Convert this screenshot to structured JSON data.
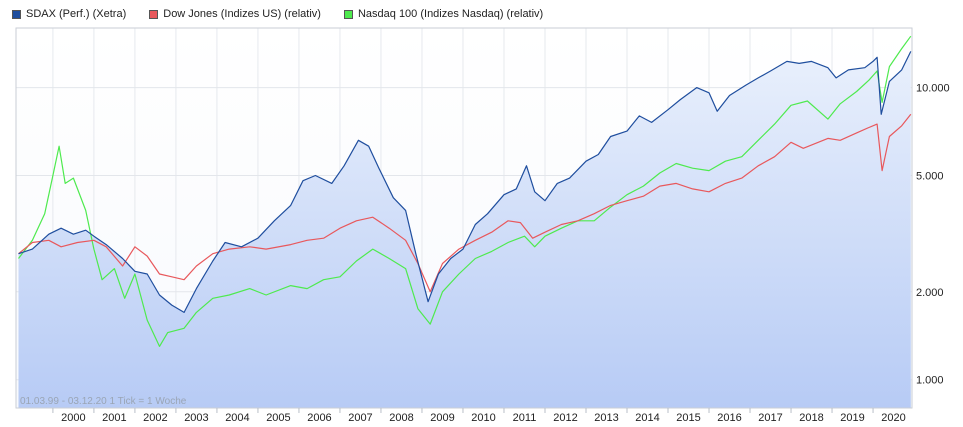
{
  "chart_data": {
    "type": "line",
    "y_scale": "log",
    "ylim": [
      800,
      16000
    ],
    "xlim": [
      1999.1,
      2020.95
    ],
    "grid": "vertical and horizontal",
    "legend_position": "top-left",
    "note": "01.03.99 - 03.12.20   1 Tick = 1 Woche",
    "x_ticks": [
      "2000",
      "2001",
      "2002",
      "2003",
      "2004",
      "2005",
      "2006",
      "2007",
      "2008",
      "2009",
      "2010",
      "2011",
      "2012",
      "2013",
      "2014",
      "2015",
      "2016",
      "2017",
      "2018",
      "2019",
      "2020"
    ],
    "y_ticks": [
      {
        "value": 1000,
        "label": "1.000"
      },
      {
        "value": 2000,
        "label": "2.000"
      },
      {
        "value": 5000,
        "label": "5.000"
      },
      {
        "value": 10000,
        "label": "10.000"
      }
    ],
    "series": [
      {
        "name": "SDAX (Perf.) (Xetra)",
        "color": "#1f4e9e",
        "x": [
          1999.16,
          1999.5,
          1999.9,
          2000.2,
          2000.5,
          2000.8,
          2001.0,
          2001.3,
          2001.7,
          2002.0,
          2002.3,
          2002.6,
          2002.9,
          2003.2,
          2003.5,
          2003.9,
          2004.2,
          2004.6,
          2005.0,
          2005.4,
          2005.8,
          2006.1,
          2006.4,
          2006.8,
          2007.1,
          2007.45,
          2007.7,
          2007.95,
          2008.3,
          2008.6,
          2008.85,
          2009.15,
          2009.4,
          2009.7,
          2010.0,
          2010.3,
          2010.6,
          2011.0,
          2011.3,
          2011.55,
          2011.75,
          2012.0,
          2012.3,
          2012.6,
          2013.0,
          2013.3,
          2013.6,
          2014.0,
          2014.3,
          2014.6,
          2015.0,
          2015.3,
          2015.7,
          2016.0,
          2016.2,
          2016.5,
          2016.9,
          2017.2,
          2017.5,
          2017.9,
          2018.2,
          2018.5,
          2018.9,
          2019.1,
          2019.4,
          2019.8,
          2020.0,
          2020.1,
          2020.2,
          2020.4,
          2020.7,
          2020.92
        ],
        "values": [
          2700,
          2800,
          3150,
          3300,
          3150,
          3250,
          3100,
          2900,
          2600,
          2350,
          2300,
          1950,
          1800,
          1700,
          2050,
          2550,
          2950,
          2850,
          3050,
          3500,
          3950,
          4800,
          5000,
          4700,
          5400,
          6600,
          6300,
          5300,
          4200,
          3800,
          2700,
          1850,
          2300,
          2600,
          2800,
          3400,
          3700,
          4300,
          4500,
          5400,
          4400,
          4100,
          4700,
          4900,
          5600,
          5900,
          6800,
          7100,
          8000,
          7600,
          8400,
          9100,
          10000,
          9600,
          8300,
          9400,
          10200,
          10800,
          11400,
          12300,
          12100,
          12300,
          11700,
          10800,
          11500,
          11700,
          12300,
          12700,
          8100,
          10500,
          11500,
          13300
        ]
      },
      {
        "name": "Dow Jones (Indizes US) (relativ)",
        "color": "#e8585c",
        "x": [
          1999.16,
          1999.5,
          1999.9,
          2000.2,
          2000.6,
          2001.0,
          2001.3,
          2001.7,
          2002.0,
          2002.3,
          2002.6,
          2002.9,
          2003.2,
          2003.5,
          2003.9,
          2004.3,
          2004.8,
          2005.2,
          2005.8,
          2006.2,
          2006.6,
          2007.0,
          2007.4,
          2007.8,
          2008.2,
          2008.6,
          2008.9,
          2009.2,
          2009.5,
          2009.9,
          2010.3,
          2010.7,
          2011.1,
          2011.4,
          2011.7,
          2012.0,
          2012.4,
          2012.8,
          2013.2,
          2013.6,
          2014.0,
          2014.4,
          2014.8,
          2015.2,
          2015.6,
          2016.0,
          2016.4,
          2016.8,
          2017.2,
          2017.6,
          2018.0,
          2018.3,
          2018.9,
          2019.2,
          2019.6,
          2019.9,
          2020.1,
          2020.22,
          2020.4,
          2020.7,
          2020.92
        ],
        "values": [
          2700,
          2950,
          3000,
          2850,
          2950,
          3000,
          2850,
          2450,
          2850,
          2650,
          2300,
          2250,
          2200,
          2450,
          2700,
          2800,
          2850,
          2800,
          2900,
          3000,
          3050,
          3300,
          3500,
          3600,
          3300,
          3000,
          2500,
          2000,
          2500,
          2800,
          3000,
          3200,
          3500,
          3450,
          3050,
          3200,
          3400,
          3500,
          3700,
          3950,
          4100,
          4250,
          4600,
          4700,
          4500,
          4400,
          4700,
          4900,
          5400,
          5800,
          6500,
          6200,
          6700,
          6600,
          7000,
          7300,
          7500,
          5200,
          6800,
          7400,
          8100
        ]
      },
      {
        "name": "Nasdaq 100 (Indizes Nasdaq) (relativ)",
        "color": "#4eea4e",
        "x": [
          1999.16,
          1999.5,
          1999.8,
          2000.0,
          2000.15,
          2000.3,
          2000.5,
          2000.8,
          2001.0,
          2001.2,
          2001.5,
          2001.75,
          2002.0,
          2002.3,
          2002.6,
          2002.8,
          2003.2,
          2003.5,
          2003.9,
          2004.3,
          2004.8,
          2005.2,
          2005.8,
          2006.2,
          2006.6,
          2007.0,
          2007.4,
          2007.8,
          2008.2,
          2008.6,
          2008.9,
          2009.2,
          2009.5,
          2009.9,
          2010.3,
          2010.7,
          2011.1,
          2011.5,
          2011.75,
          2012.0,
          2012.4,
          2012.8,
          2013.2,
          2013.6,
          2014.0,
          2014.4,
          2014.8,
          2015.2,
          2015.6,
          2016.0,
          2016.4,
          2016.8,
          2017.2,
          2017.6,
          2018.0,
          2018.4,
          2018.9,
          2019.2,
          2019.6,
          2019.9,
          2020.1,
          2020.22,
          2020.4,
          2020.7,
          2020.92
        ],
        "values": [
          2600,
          3000,
          3700,
          5000,
          6300,
          4700,
          4900,
          3800,
          2800,
          2200,
          2400,
          1900,
          2300,
          1600,
          1300,
          1450,
          1500,
          1700,
          1900,
          1950,
          2050,
          1950,
          2100,
          2050,
          2200,
          2250,
          2550,
          2800,
          2600,
          2400,
          1750,
          1550,
          2000,
          2300,
          2600,
          2750,
          2950,
          3100,
          2850,
          3100,
          3300,
          3500,
          3500,
          3900,
          4300,
          4600,
          5100,
          5500,
          5300,
          5200,
          5600,
          5800,
          6600,
          7500,
          8700,
          9000,
          7800,
          8800,
          9700,
          10600,
          11400,
          8900,
          11800,
          13600,
          15000
        ]
      }
    ]
  }
}
